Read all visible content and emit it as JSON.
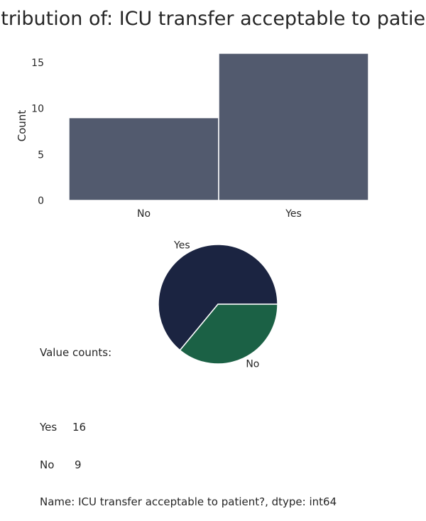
{
  "chart_data": [
    {
      "type": "bar",
      "title": "Distribution of: ICU transfer acceptable to patient?",
      "xlabel": "",
      "ylabel": "Count",
      "categories": [
        "No",
        "Yes"
      ],
      "values": [
        9,
        16
      ],
      "ylim": [
        0,
        17
      ],
      "yticks": [
        0,
        5,
        10,
        15
      ],
      "grid": false,
      "color": "#525a6e"
    },
    {
      "type": "pie",
      "labels": [
        "Yes",
        "No"
      ],
      "values": [
        16,
        9
      ],
      "colors": [
        "#1b2441",
        "#1b6145"
      ]
    }
  ],
  "value_counts": {
    "header": "Value counts:",
    "rows": [
      {
        "label": "Yes",
        "count": "16"
      },
      {
        "label": "No",
        "count": "9"
      }
    ],
    "footer": "Name: ICU transfer acceptable to patient?, dtype: int64"
  }
}
